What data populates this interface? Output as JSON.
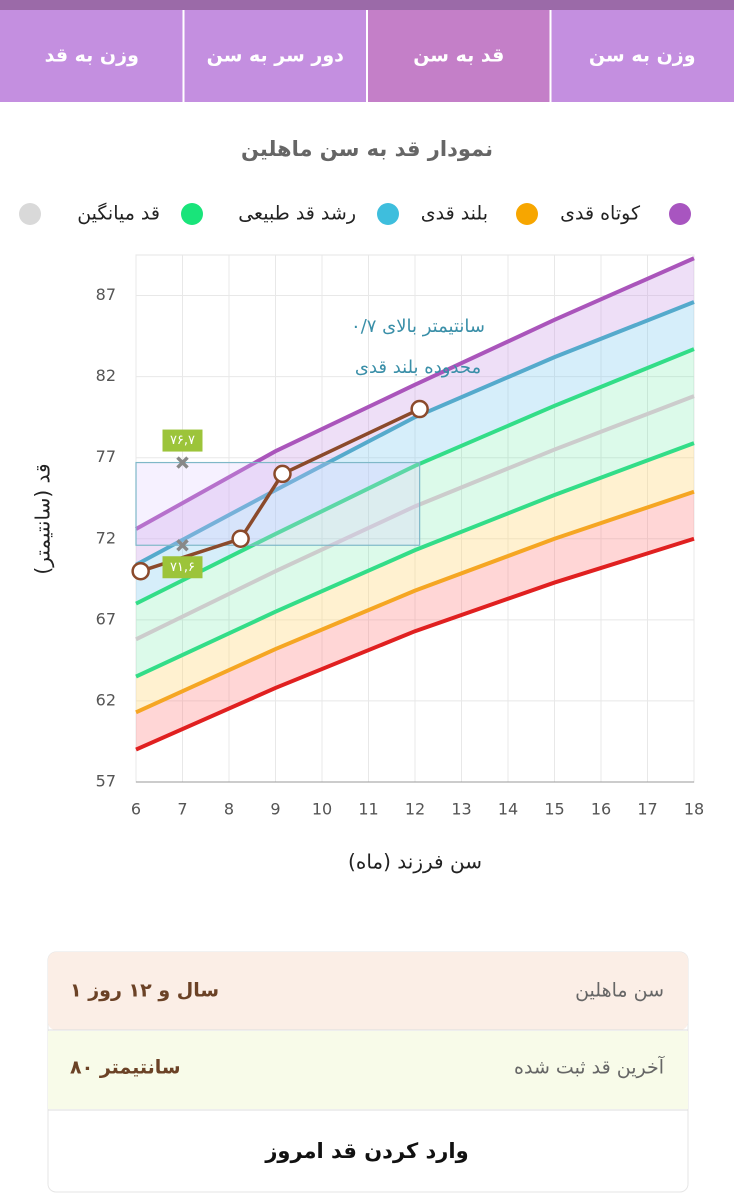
{
  "tabs": {
    "items": [
      "وزن به سن",
      "قد به سن",
      "دور سر به سن",
      "وزن به قد"
    ],
    "active": 1
  },
  "chart_data": {
    "type": "line",
    "title": "نمودار قد به سن ماهلین",
    "x_label": "سن فرزند (ماه)",
    "y_label": "قد (سانتیمتر)",
    "legend": [
      {
        "name": "کوتاه قدی",
        "color": "#f7a600"
      },
      {
        "name": "بلند قدی",
        "color": "#3ebedd"
      },
      {
        "name": "رشد قد طبیعی",
        "color": "#19e47a"
      },
      {
        "name": "قد میانگین",
        "color": "#d9d9d9"
      }
    ],
    "x": [
      6,
      9,
      12,
      15,
      18
    ],
    "series": [
      {
        "color": "#aa55bb",
        "values": [
          72.6,
          77.4,
          81.5,
          85.5,
          89.3
        ]
      },
      {
        "color": "#55aacc",
        "values": [
          70.4,
          75,
          79.5,
          83.2,
          86.6
        ]
      },
      {
        "color": "#33dd88",
        "values": [
          68,
          72.3,
          76.5,
          80.2,
          83.7
        ]
      },
      {
        "color": "#cccccc",
        "values": [
          65.8,
          70,
          74,
          77.5,
          80.8
        ]
      },
      {
        "color": "#33dd88",
        "values": [
          63.5,
          67.5,
          71.3,
          74.7,
          77.9
        ]
      },
      {
        "color": "#f5a623",
        "values": [
          61.3,
          65.2,
          68.8,
          72,
          74.9
        ]
      },
      {
        "color": "#e02020",
        "values": [
          59,
          62.8,
          66.3,
          69.3,
          72
        ]
      }
    ],
    "child": {
      "x": [
        6.1,
        8.25,
        9.15,
        12.1
      ],
      "values": [
        70,
        72,
        76,
        80
      ],
      "color": "#8b4a2b"
    },
    "markers": {
      "x": 7,
      "values": [
        76.7,
        71.6
      ],
      "value_labels": [
        "۷۶,۷",
        "۷۱,۶"
      ]
    },
    "box_x": [
      6,
      12.1
    ],
    "annotation": [
      "۰/۷ سانتیمتر بالای",
      "محدوده بلند قدی"
    ],
    "xlim": [
      6,
      18
    ],
    "ylim": [
      57,
      89.5
    ],
    "xticks": [
      6,
      7,
      8,
      9,
      10,
      11,
      12,
      13,
      14,
      15,
      16,
      17,
      18
    ],
    "yticks": [
      57,
      62,
      67,
      72,
      77,
      82,
      87
    ],
    "grid": true
  },
  "info": {
    "rows": [
      {
        "label": "سن ماهلین",
        "value": "۱ سال و ۱۲ روز"
      },
      {
        "label": "آخرین قد ثبت شده",
        "value": "۸۰ سانتیمتر"
      }
    ],
    "button": "وارد کردن قد امروز"
  }
}
